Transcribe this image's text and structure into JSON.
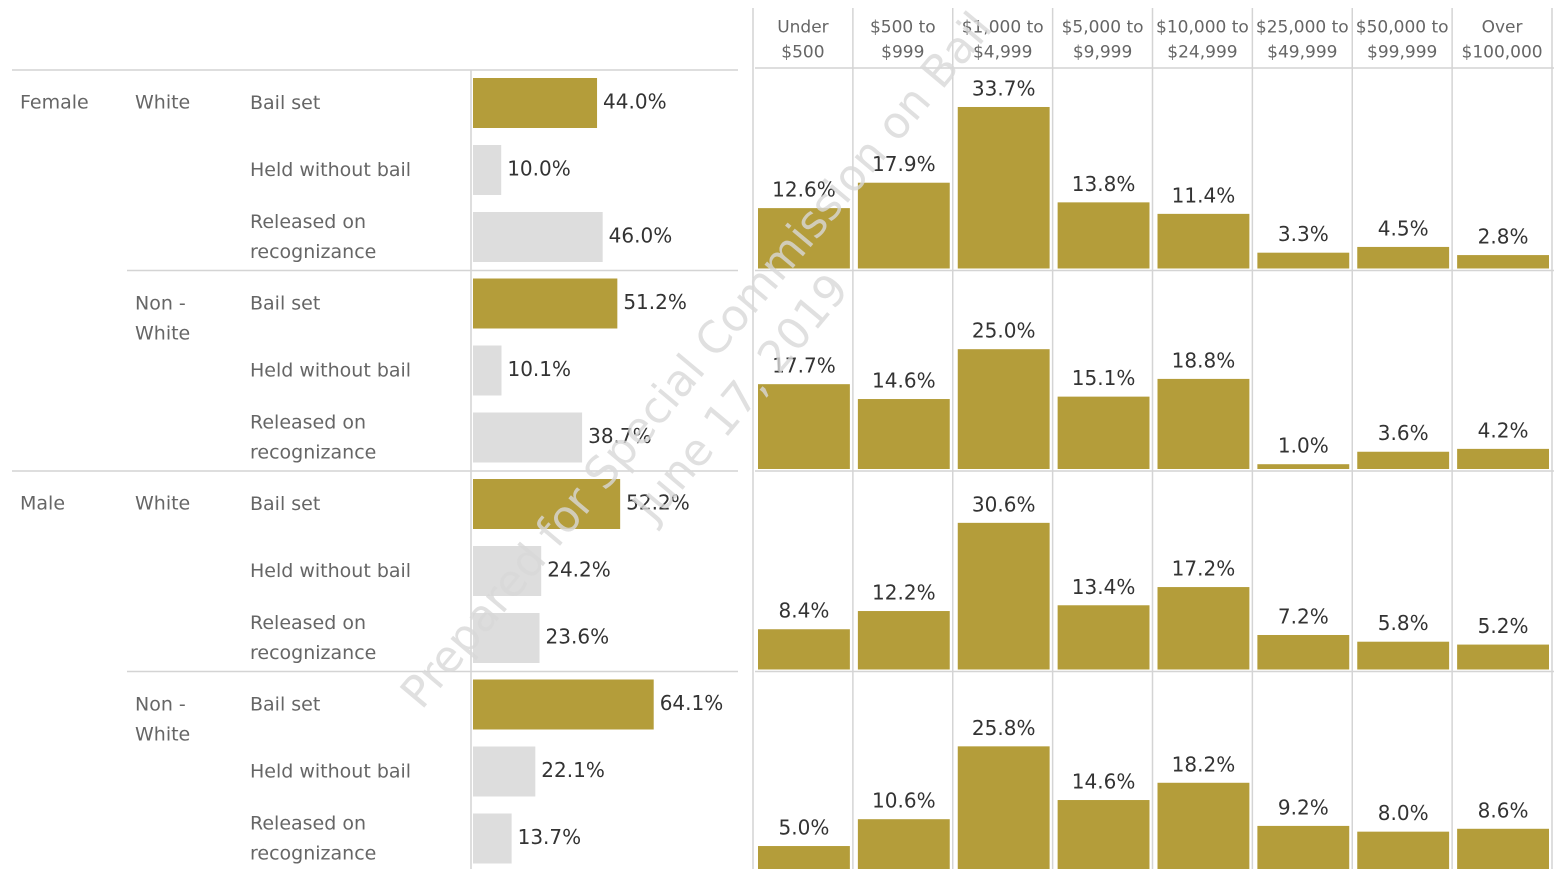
{
  "chart_data": [
    {
      "type": "bar",
      "orientation": "horizontal",
      "colors": [
        "#b49d3a",
        "#dddddd",
        "#dddddd"
      ],
      "xlim": [
        0,
        94
      ],
      "genders": [
        {
          "name": "Female",
          "races": [
            {
              "name": "White",
              "categories": [
                "Bail set",
                "Held without bail",
                "Released on recognizance"
              ],
              "values": [
                44.0,
                10.0,
                46.0
              ],
              "value_labels": [
                "44.0%",
                "10.0%",
                "46.0%"
              ]
            },
            {
              "name": "Non - White",
              "categories": [
                "Bail set",
                "Held without bail",
                "Released on recognizance"
              ],
              "values": [
                51.2,
                10.1,
                38.7
              ],
              "value_labels": [
                "51.2%",
                "10.1%",
                "38.7%"
              ]
            }
          ]
        },
        {
          "name": "Male",
          "races": [
            {
              "name": "White",
              "categories": [
                "Bail set",
                "Held without bail",
                "Released on recognizance"
              ],
              "values": [
                52.2,
                24.2,
                23.6
              ],
              "value_labels": [
                "52.2%",
                "24.2%",
                "23.6%"
              ]
            },
            {
              "name": "Non - White",
              "categories": [
                "Bail set",
                "Held without bail",
                "Released on recognizance"
              ],
              "values": [
                64.1,
                22.1,
                13.7
              ],
              "value_labels": [
                "64.1%",
                "22.1%",
                "13.7%"
              ]
            }
          ]
        }
      ]
    },
    {
      "type": "bar",
      "color": "#b49d3a",
      "ylim": [
        0,
        41
      ],
      "categories": [
        "Under $500",
        "$500 to $999",
        "$1,000 to $4,999",
        "$5,000 to $9,999",
        "$10,000 to $24,999",
        "$25,000 to $49,999",
        "$50,000 to $99,999",
        "Over $100,000"
      ],
      "series": [
        {
          "values": [
            12.6,
            17.9,
            33.7,
            13.8,
            11.4,
            3.3,
            4.5,
            2.8
          ],
          "value_labels": [
            "12.6%",
            "17.9%",
            "33.7%",
            "13.8%",
            "11.4%",
            "3.3%",
            "4.5%",
            "2.8%"
          ]
        },
        {
          "values": [
            17.7,
            14.6,
            25.0,
            15.1,
            18.8,
            1.0,
            3.6,
            4.2
          ],
          "value_labels": [
            "17.7%",
            "14.6%",
            "25.0%",
            "15.1%",
            "18.8%",
            "1.0%",
            "3.6%",
            "4.2%"
          ]
        },
        {
          "values": [
            8.4,
            12.2,
            30.6,
            13.4,
            17.2,
            7.2,
            5.8,
            5.2
          ],
          "value_labels": [
            "8.4%",
            "12.2%",
            "30.6%",
            "13.4%",
            "17.2%",
            "7.2%",
            "5.8%",
            "5.2%"
          ]
        },
        {
          "values": [
            5.0,
            10.6,
            25.8,
            14.6,
            18.2,
            9.2,
            8.0,
            8.6
          ],
          "value_labels": [
            "5.0%",
            "10.6%",
            "25.8%",
            "14.6%",
            "18.2%",
            "9.2%",
            "8.0%",
            "8.6%"
          ]
        }
      ]
    }
  ],
  "watermark": [
    "Prepared for Special Commission on Bail",
    "June 17, 2019"
  ]
}
